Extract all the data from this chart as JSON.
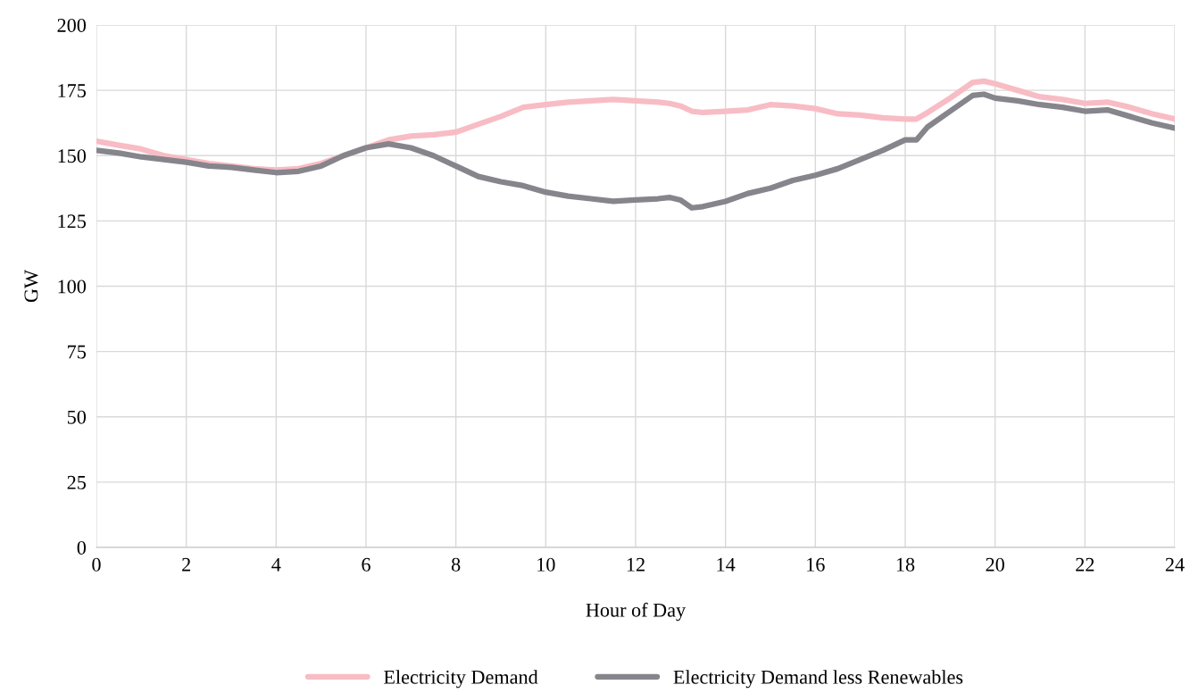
{
  "chart_data": {
    "type": "line",
    "xlabel": "Hour of Day",
    "ylabel": "GW",
    "x": [
      0,
      0.5,
      1,
      1.5,
      2,
      2.5,
      3,
      3.5,
      4,
      4.5,
      5,
      5.5,
      6,
      6.5,
      7,
      7.5,
      8,
      8.5,
      9,
      9.5,
      10,
      10.5,
      11,
      11.5,
      12,
      12.5,
      12.75,
      13,
      13.25,
      13.5,
      14,
      14.5,
      15,
      15.5,
      16,
      16.5,
      17,
      17.5,
      18,
      18.25,
      18.5,
      19,
      19.5,
      19.75,
      20,
      20.5,
      21,
      21.5,
      22,
      22.5,
      23,
      23.5,
      24
    ],
    "series": [
      {
        "name": "Electricity Demand",
        "color": "#f8bcc4",
        "values": [
          155.5,
          154,
          152.5,
          150,
          148.5,
          147,
          146,
          145,
          144.5,
          145,
          147,
          150,
          153,
          156,
          157.5,
          158,
          159,
          162,
          165,
          168.5,
          169.5,
          170.5,
          171,
          171.5,
          171,
          170.5,
          170,
          169,
          167,
          166.5,
          167,
          167.5,
          169.5,
          169,
          168,
          166,
          165.5,
          164.5,
          164,
          164,
          166.5,
          172,
          178,
          178.5,
          177.5,
          175,
          172.5,
          171.5,
          170,
          170.5,
          168.5,
          166,
          164
        ]
      },
      {
        "name": "Electricity Demand less Renewables",
        "color": "#86858c",
        "values": [
          152,
          151,
          149.5,
          148.5,
          147.5,
          146,
          145.5,
          144.5,
          143.5,
          144,
          146,
          150,
          153,
          154.5,
          153,
          150,
          146,
          142,
          140,
          138.5,
          136,
          134.5,
          133.5,
          132.5,
          133,
          133.5,
          134,
          133,
          130,
          130.5,
          132.5,
          135.5,
          137.5,
          140.5,
          142.5,
          145,
          148.5,
          152,
          156,
          156,
          161,
          167,
          173,
          173.5,
          172,
          171,
          169.5,
          168.5,
          167,
          167.5,
          165,
          162.5,
          160.5
        ]
      }
    ],
    "xlim": [
      0,
      24
    ],
    "xticks": [
      0,
      2,
      4,
      6,
      8,
      10,
      12,
      14,
      16,
      18,
      20,
      22,
      24
    ],
    "ylim": [
      0,
      200
    ],
    "yticks": [
      0,
      25,
      50,
      75,
      100,
      125,
      150,
      175,
      200
    ],
    "grid": true,
    "legend": "bottom",
    "marker": "none",
    "line_style": "solid"
  }
}
